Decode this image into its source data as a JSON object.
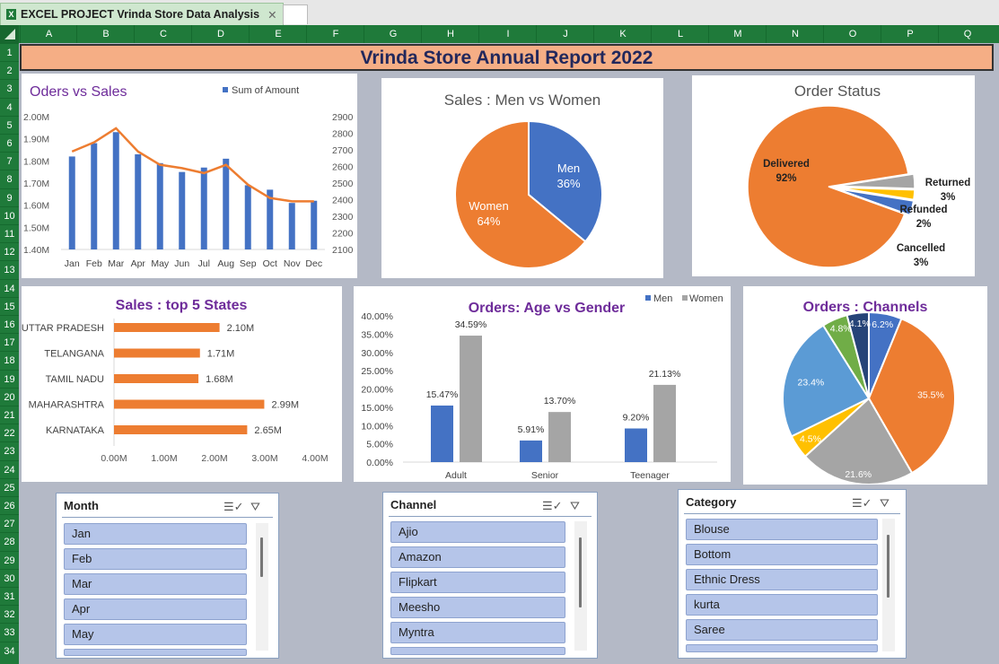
{
  "window": {
    "sheet_title": "EXCEL PROJECT  Vrinda Store Data Analysis",
    "close_glyph": "✕",
    "excel_icon": "excel-icon"
  },
  "columns": [
    "A",
    "B",
    "C",
    "D",
    "E",
    "F",
    "G",
    "H",
    "I",
    "J",
    "K",
    "L",
    "M",
    "N",
    "O",
    "P",
    "Q"
  ],
  "rows": [
    "1",
    "2",
    "3",
    "4",
    "5",
    "6",
    "7",
    "8",
    "9",
    "10",
    "11",
    "12",
    "13",
    "14",
    "15",
    "16",
    "17",
    "18",
    "19",
    "20",
    "21",
    "22",
    "23",
    "24",
    "25",
    "26",
    "27",
    "28",
    "29",
    "30",
    "31",
    "32",
    "33",
    "34"
  ],
  "report_title": "Vrinda Store Annual Report 2022",
  "colors": {
    "blue": "#4472c4",
    "orange": "#ed7d31",
    "gray": "#a5a5a5",
    "yellow": "#ffc000",
    "lightblue": "#5b9bd5",
    "green": "#70ad47",
    "navy": "#264478",
    "purple_title": "#6e2c9a"
  },
  "chart_data": [
    {
      "id": "orders_vs_sales",
      "type": "bar",
      "title": "Oders vs Sales",
      "legend": [
        "Sum of Amount"
      ],
      "categories": [
        "Jan",
        "Feb",
        "Mar",
        "Apr",
        "May",
        "Jun",
        "Jul",
        "Aug",
        "Sep",
        "Oct",
        "Nov",
        "Dec"
      ],
      "series": [
        {
          "name": "Sum of Amount",
          "type": "bar",
          "axis": "left",
          "values": [
            1.82,
            1.88,
            1.93,
            1.83,
            1.79,
            1.75,
            1.77,
            1.81,
            1.69,
            1.67,
            1.61,
            1.62
          ]
        },
        {
          "type": "line",
          "axis": "right",
          "values": [
            2690,
            2745,
            2830,
            2690,
            2610,
            2590,
            2560,
            2610,
            2490,
            2410,
            2390,
            2390
          ]
        }
      ],
      "left_ticks": [
        "2.00M",
        "1.90M",
        "1.80M",
        "1.70M",
        "1.60M",
        "1.50M",
        "1.40M"
      ],
      "right_ticks": [
        "2900",
        "2800",
        "2700",
        "2600",
        "2500",
        "2400",
        "2300",
        "2200",
        "2100"
      ],
      "ylim": [
        1.4,
        2.0
      ],
      "y2lim": [
        2100,
        2900
      ]
    },
    {
      "id": "sales_men_women",
      "type": "pie",
      "title": "Sales : Men vs Women",
      "labels": [
        "Men",
        "Women"
      ],
      "values": [
        36,
        64
      ],
      "display": [
        "36%",
        "64%"
      ]
    },
    {
      "id": "order_status",
      "type": "pie",
      "title": "Order Status",
      "labels": [
        "Delivered",
        "Returned",
        "Refunded",
        "Cancelled"
      ],
      "values": [
        92,
        3,
        2,
        3
      ],
      "display": [
        "92%",
        "3%",
        "2%",
        "3%"
      ]
    },
    {
      "id": "top_states",
      "type": "bar",
      "orientation": "horizontal",
      "title": "Sales : top 5 States",
      "categories": [
        "UTTAR PRADESH",
        "TELANGANA",
        "TAMIL NADU",
        "MAHARASHTRA",
        "KARNATAKA"
      ],
      "values": [
        2.1,
        1.71,
        1.68,
        2.99,
        2.65
      ],
      "value_labels": [
        "2.10M",
        "1.71M",
        "1.68M",
        "2.99M",
        "2.65M"
      ],
      "x_ticks": [
        "0.00M",
        "1.00M",
        "2.00M",
        "3.00M",
        "4.00M"
      ],
      "xlim": [
        0,
        4
      ]
    },
    {
      "id": "age_vs_gender",
      "type": "bar",
      "title": "Orders: Age vs Gender",
      "legend": [
        "Men",
        "Women"
      ],
      "categories": [
        "Adult",
        "Senior",
        "Teenager"
      ],
      "series": [
        {
          "name": "Men",
          "values": [
            15.47,
            5.91,
            9.2
          ],
          "labels": [
            "15.47%",
            "5.91%",
            "9.20%"
          ]
        },
        {
          "name": "Women",
          "values": [
            34.59,
            13.7,
            21.13
          ],
          "labels": [
            "34.59%",
            "13.70%",
            "21.13%"
          ]
        }
      ],
      "y_ticks": [
        "40.00%",
        "35.00%",
        "30.00%",
        "25.00%",
        "20.00%",
        "15.00%",
        "10.00%",
        "5.00%",
        "0.00%"
      ],
      "ylim": [
        0,
        40
      ]
    },
    {
      "id": "channels",
      "type": "pie",
      "title": "Orders : Channels",
      "values": [
        6.2,
        35.5,
        21.6,
        4.5,
        23.4,
        4.8,
        4.1
      ],
      "display": [
        "6.2%",
        "35.5%",
        "21.6%",
        "4.5%",
        "23.4%",
        "4.8%",
        "4.1%"
      ]
    }
  ],
  "slicers": {
    "month": {
      "title": "Month",
      "items": [
        "Jan",
        "Feb",
        "Mar",
        "Apr",
        "May"
      ]
    },
    "channel": {
      "title": "Channel",
      "items": [
        "Ajio",
        "Amazon",
        "Flipkart",
        "Meesho",
        "Myntra"
      ]
    },
    "category": {
      "title": "Category",
      "items": [
        "Blouse",
        "Bottom",
        "Ethnic Dress",
        "kurta",
        "Saree"
      ]
    }
  },
  "slicer_icons": [
    "multi-select-icon",
    "clear-filter-icon"
  ]
}
